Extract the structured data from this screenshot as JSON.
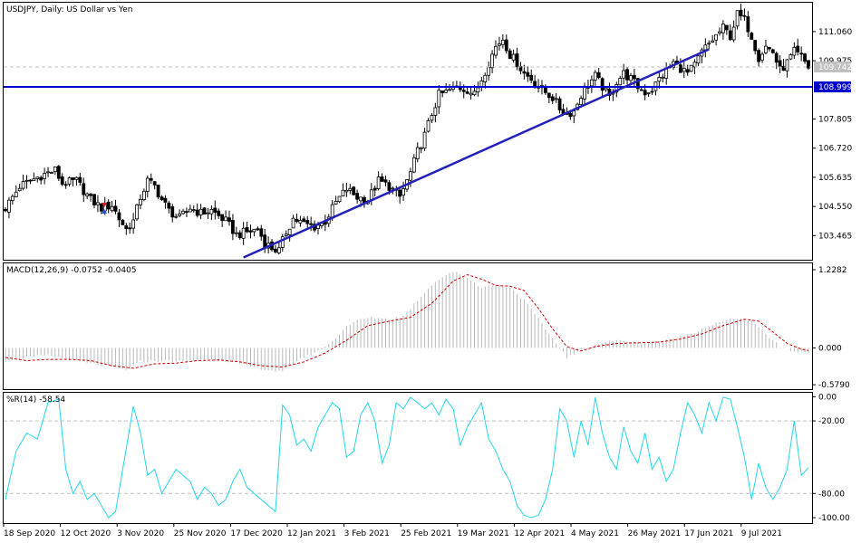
{
  "chart_data": [
    {
      "type": "candlestick",
      "title": "USDJPY, Daily:  US Dollar vs Yen",
      "y_ticks": [
        "111.060",
        "109.975",
        "107.805",
        "106.720",
        "105.635",
        "104.550",
        "103.465"
      ],
      "ylim": [
        102.6,
        112.1
      ],
      "current_price": "109.742",
      "horizontal_line": {
        "label": "108.999",
        "value": 108.999,
        "color": "#0000cc"
      },
      "trendline": {
        "from": {
          "x": "2020-12-22",
          "y": 102.65
        },
        "to": {
          "x": "2021-06-23",
          "y": 110.4
        },
        "color": "#2222bb"
      },
      "x_labels": [
        "18 Sep 2020",
        "12 Oct 2020",
        "3 Nov 2020",
        "25 Nov 2020",
        "17 Dec 2020",
        "12 Jan 2021",
        "3 Feb 2021",
        "25 Feb 2021",
        "19 Mar 2021",
        "12 Apr 2021",
        "4 May 2021",
        "26 May 2021",
        "17 Jun 2021",
        "9 Jul 2021"
      ],
      "close_path": [
        [
          0,
          104.5
        ],
        [
          4,
          105.3
        ],
        [
          10,
          105.7
        ],
        [
          14,
          105.9
        ],
        [
          16,
          105.4
        ],
        [
          20,
          105.5
        ],
        [
          24,
          104.8
        ],
        [
          27,
          104.5
        ],
        [
          30,
          104.6
        ],
        [
          32,
          104.1
        ],
        [
          34,
          103.7
        ],
        [
          36,
          104.0
        ],
        [
          38,
          104.9
        ],
        [
          40,
          105.5
        ],
        [
          42,
          105.3
        ],
        [
          44,
          104.8
        ],
        [
          46,
          104.4
        ],
        [
          49,
          104.1
        ],
        [
          52,
          104.5
        ],
        [
          55,
          104.3
        ],
        [
          58,
          104.4
        ],
        [
          62,
          104.0
        ],
        [
          65,
          103.5
        ],
        [
          68,
          103.6
        ],
        [
          71,
          103.7
        ],
        [
          73,
          103.2
        ],
        [
          75,
          103.0
        ],
        [
          77,
          102.9
        ],
        [
          79,
          103.6
        ],
        [
          81,
          104.1
        ],
        [
          84,
          103.9
        ],
        [
          87,
          103.8
        ],
        [
          90,
          104.0
        ],
        [
          93,
          104.7
        ],
        [
          96,
          105.2
        ],
        [
          99,
          104.9
        ],
        [
          102,
          104.8
        ],
        [
          105,
          105.5
        ],
        [
          108,
          105.3
        ],
        [
          111,
          104.9
        ],
        [
          114,
          105.8
        ],
        [
          116,
          106.6
        ],
        [
          118,
          107.2
        ],
        [
          120,
          108.0
        ],
        [
          122,
          108.7
        ],
        [
          124,
          108.8
        ],
        [
          127,
          109.0
        ],
        [
          130,
          108.9
        ],
        [
          132,
          108.7
        ],
        [
          134,
          109.3
        ],
        [
          136,
          109.9
        ],
        [
          138,
          110.5
        ],
        [
          140,
          110.8
        ],
        [
          142,
          110.2
        ],
        [
          144,
          109.9
        ],
        [
          146,
          109.5
        ],
        [
          148,
          109.3
        ],
        [
          150,
          109.0
        ],
        [
          152,
          108.8
        ],
        [
          154,
          108.6
        ],
        [
          156,
          108.2
        ],
        [
          158,
          108.0
        ],
        [
          160,
          108.1
        ],
        [
          162,
          108.7
        ],
        [
          164,
          109.1
        ],
        [
          166,
          109.4
        ],
        [
          168,
          109.0
        ],
        [
          170,
          108.6
        ],
        [
          172,
          109.2
        ],
        [
          174,
          109.5
        ],
        [
          176,
          109.3
        ],
        [
          178,
          109.0
        ],
        [
          180,
          108.8
        ],
        [
          182,
          108.9
        ],
        [
          184,
          109.3
        ],
        [
          186,
          109.6
        ],
        [
          188,
          109.9
        ],
        [
          190,
          109.7
        ],
        [
          192,
          109.5
        ],
        [
          194,
          109.8
        ],
        [
          196,
          110.3
        ],
        [
          198,
          110.6
        ],
        [
          200,
          110.9
        ],
        [
          202,
          111.2
        ],
        [
          204,
          110.9
        ],
        [
          206,
          111.7
        ],
        [
          208,
          111.5
        ],
        [
          210,
          110.9
        ],
        [
          212,
          110.1
        ],
        [
          214,
          110.5
        ],
        [
          216,
          110.3
        ],
        [
          218,
          109.6
        ],
        [
          220,
          109.9
        ],
        [
          222,
          110.3
        ],
        [
          224,
          110.1
        ],
        [
          226,
          109.742
        ]
      ]
    },
    {
      "type": "bar",
      "title": "MACD(12,26,9) -0.0752 -0.0405",
      "y_ticks": [
        "1.2282",
        "0.000",
        "-0.5790"
      ],
      "ylim": [
        -0.62,
        1.3
      ],
      "bar_path": [
        [
          0,
          -0.2
        ],
        [
          6,
          -0.15
        ],
        [
          12,
          -0.12
        ],
        [
          18,
          -0.18
        ],
        [
          24,
          -0.25
        ],
        [
          30,
          -0.3
        ],
        [
          34,
          -0.35
        ],
        [
          38,
          -0.22
        ],
        [
          44,
          -0.2
        ],
        [
          50,
          -0.22
        ],
        [
          56,
          -0.18
        ],
        [
          62,
          -0.2
        ],
        [
          68,
          -0.28
        ],
        [
          74,
          -0.35
        ],
        [
          78,
          -0.38
        ],
        [
          82,
          -0.2
        ],
        [
          88,
          -0.05
        ],
        [
          92,
          0.1
        ],
        [
          96,
          0.35
        ],
        [
          100,
          0.45
        ],
        [
          104,
          0.48
        ],
        [
          108,
          0.45
        ],
        [
          112,
          0.5
        ],
        [
          116,
          0.75
        ],
        [
          120,
          1.0
        ],
        [
          124,
          1.15
        ],
        [
          127,
          1.2
        ],
        [
          130,
          1.1
        ],
        [
          134,
          0.95
        ],
        [
          138,
          1.0
        ],
        [
          142,
          0.95
        ],
        [
          146,
          0.75
        ],
        [
          150,
          0.45
        ],
        [
          154,
          0.15
        ],
        [
          158,
          -0.15
        ],
        [
          162,
          -0.05
        ],
        [
          166,
          0.05
        ],
        [
          170,
          0.1
        ],
        [
          174,
          0.12
        ],
        [
          178,
          0.08
        ],
        [
          182,
          0.1
        ],
        [
          186,
          0.12
        ],
        [
          190,
          0.18
        ],
        [
          194,
          0.25
        ],
        [
          198,
          0.35
        ],
        [
          202,
          0.42
        ],
        [
          206,
          0.47
        ],
        [
          210,
          0.42
        ],
        [
          214,
          0.22
        ],
        [
          218,
          0.02
        ],
        [
          222,
          -0.06
        ],
        [
          226,
          -0.0752
        ]
      ],
      "signal_path": [
        [
          0,
          -0.15
        ],
        [
          6,
          -0.2
        ],
        [
          12,
          -0.18
        ],
        [
          18,
          -0.18
        ],
        [
          24,
          -0.2
        ],
        [
          30,
          -0.28
        ],
        [
          36,
          -0.32
        ],
        [
          42,
          -0.25
        ],
        [
          48,
          -0.24
        ],
        [
          54,
          -0.2
        ],
        [
          60,
          -0.19
        ],
        [
          66,
          -0.22
        ],
        [
          72,
          -0.28
        ],
        [
          78,
          -0.3
        ],
        [
          84,
          -0.22
        ],
        [
          90,
          -0.08
        ],
        [
          96,
          0.12
        ],
        [
          102,
          0.35
        ],
        [
          108,
          0.42
        ],
        [
          114,
          0.48
        ],
        [
          120,
          0.7
        ],
        [
          126,
          1.05
        ],
        [
          130,
          1.15
        ],
        [
          134,
          1.08
        ],
        [
          138,
          0.98
        ],
        [
          142,
          0.97
        ],
        [
          146,
          0.9
        ],
        [
          150,
          0.62
        ],
        [
          154,
          0.3
        ],
        [
          158,
          0.02
        ],
        [
          162,
          -0.05
        ],
        [
          166,
          0.02
        ],
        [
          172,
          0.07
        ],
        [
          178,
          0.08
        ],
        [
          184,
          0.09
        ],
        [
          190,
          0.14
        ],
        [
          196,
          0.22
        ],
        [
          202,
          0.35
        ],
        [
          208,
          0.45
        ],
        [
          212,
          0.42
        ],
        [
          216,
          0.25
        ],
        [
          220,
          0.07
        ],
        [
          224,
          -0.02
        ],
        [
          226,
          -0.0405
        ]
      ]
    },
    {
      "type": "line",
      "title": "%R(14) -58.54",
      "y_ticks": [
        "0.00",
        "-20.00",
        "-80.00",
        "-100.00"
      ],
      "ylim": [
        -103,
        1
      ],
      "reference_levels": [
        -20,
        -80
      ],
      "values_path": [
        [
          0,
          -85
        ],
        [
          3,
          -45
        ],
        [
          6,
          -30
        ],
        [
          9,
          -35
        ],
        [
          12,
          -5
        ],
        [
          15,
          -2
        ],
        [
          17,
          -60
        ],
        [
          19,
          -80
        ],
        [
          21,
          -70
        ],
        [
          23,
          -85
        ],
        [
          25,
          -80
        ],
        [
          27,
          -90
        ],
        [
          29,
          -100
        ],
        [
          31,
          -95
        ],
        [
          33,
          -60
        ],
        [
          36,
          -8
        ],
        [
          38,
          -30
        ],
        [
          40,
          -65
        ],
        [
          42,
          -60
        ],
        [
          44,
          -80
        ],
        [
          46,
          -70
        ],
        [
          48,
          -60
        ],
        [
          50,
          -65
        ],
        [
          52,
          -70
        ],
        [
          54,
          -85
        ],
        [
          56,
          -75
        ],
        [
          58,
          -80
        ],
        [
          60,
          -90
        ],
        [
          62,
          -85
        ],
        [
          64,
          -70
        ],
        [
          66,
          -60
        ],
        [
          68,
          -75
        ],
        [
          70,
          -80
        ],
        [
          72,
          -85
        ],
        [
          74,
          -90
        ],
        [
          76,
          -95
        ],
        [
          78,
          -7
        ],
        [
          80,
          -15
        ],
        [
          82,
          -40
        ],
        [
          84,
          -35
        ],
        [
          86,
          -45
        ],
        [
          88,
          -25
        ],
        [
          90,
          -15
        ],
        [
          92,
          -5
        ],
        [
          94,
          -10
        ],
        [
          96,
          -50
        ],
        [
          98,
          -45
        ],
        [
          100,
          -15
        ],
        [
          102,
          -5
        ],
        [
          104,
          -20
        ],
        [
          106,
          -55
        ],
        [
          108,
          -40
        ],
        [
          110,
          -5
        ],
        [
          112,
          -10
        ],
        [
          114,
          -0.5
        ],
        [
          116,
          -5
        ],
        [
          118,
          -10
        ],
        [
          120,
          -5
        ],
        [
          122,
          -15
        ],
        [
          124,
          -2
        ],
        [
          126,
          -10
        ],
        [
          128,
          -40
        ],
        [
          130,
          -25
        ],
        [
          132,
          -15
        ],
        [
          134,
          -5
        ],
        [
          136,
          -35
        ],
        [
          138,
          -45
        ],
        [
          140,
          -60
        ],
        [
          142,
          -70
        ],
        [
          144,
          -90
        ],
        [
          146,
          -98
        ],
        [
          148,
          -100
        ],
        [
          150,
          -98
        ],
        [
          152,
          -85
        ],
        [
          154,
          -60
        ],
        [
          156,
          -10
        ],
        [
          158,
          -20
        ],
        [
          160,
          -50
        ],
        [
          162,
          -20
        ],
        [
          164,
          -40
        ],
        [
          166,
          -0.5
        ],
        [
          168,
          -30
        ],
        [
          170,
          -50
        ],
        [
          172,
          -60
        ],
        [
          174,
          -25
        ],
        [
          176,
          -45
        ],
        [
          178,
          -55
        ],
        [
          180,
          -30
        ],
        [
          182,
          -60
        ],
        [
          184,
          -50
        ],
        [
          186,
          -70
        ],
        [
          188,
          -60
        ],
        [
          190,
          -30
        ],
        [
          192,
          -5
        ],
        [
          194,
          -15
        ],
        [
          196,
          -30
        ],
        [
          198,
          -5
        ],
        [
          200,
          -20
        ],
        [
          202,
          -0.5
        ],
        [
          204,
          -2
        ],
        [
          206,
          -25
        ],
        [
          208,
          -50
        ],
        [
          210,
          -85
        ],
        [
          212,
          -55
        ],
        [
          214,
          -75
        ],
        [
          216,
          -85
        ],
        [
          218,
          -75
        ],
        [
          220,
          -60
        ],
        [
          222,
          -20
        ],
        [
          224,
          -65
        ],
        [
          226,
          -58.54
        ]
      ]
    }
  ]
}
